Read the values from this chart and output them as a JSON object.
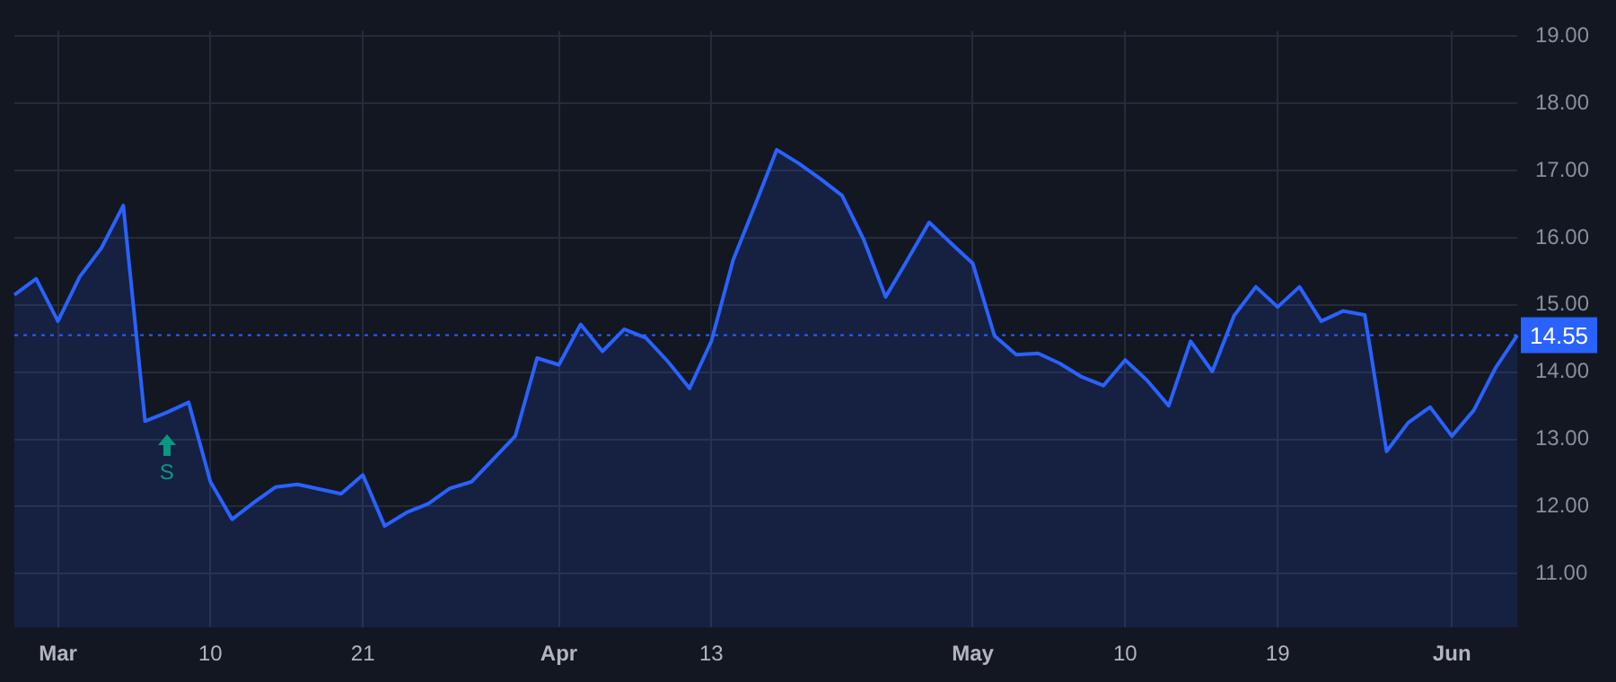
{
  "chart_data": {
    "type": "area",
    "categories": [
      null,
      null,
      "Mar",
      null,
      null,
      null,
      null,
      null,
      null,
      "10",
      null,
      null,
      null,
      null,
      null,
      null,
      "21",
      null,
      null,
      null,
      null,
      null,
      null,
      null,
      null,
      "Apr",
      null,
      null,
      null,
      null,
      null,
      null,
      "13",
      null,
      null,
      null,
      null,
      null,
      null,
      null,
      null,
      null,
      null,
      null,
      "May",
      null,
      null,
      null,
      null,
      null,
      null,
      "10",
      null,
      null,
      null,
      null,
      null,
      null,
      "19",
      null,
      null,
      null,
      null,
      null,
      null,
      null,
      "Jun",
      null,
      null,
      null
    ],
    "series": [
      {
        "color": "#2962ff",
        "values": [
          15.15,
          15.39,
          14.76,
          15.42,
          15.85,
          16.48,
          13.27,
          13.4,
          13.55,
          12.37,
          11.81,
          12.06,
          12.29,
          12.33,
          12.26,
          12.19,
          12.47,
          11.71,
          11.91,
          12.04,
          12.27,
          12.37,
          12.71,
          13.05,
          14.21,
          14.11,
          14.71,
          14.31,
          14.64,
          14.51,
          14.16,
          13.76,
          14.46,
          15.67,
          16.48,
          17.31,
          17.11,
          16.88,
          16.63,
          15.97,
          15.12,
          15.67,
          16.23,
          15.92,
          15.62,
          14.54,
          14.26,
          14.28,
          14.13,
          13.93,
          13.8,
          14.18,
          13.88,
          13.5,
          14.46,
          14.01,
          14.84,
          15.27,
          14.97,
          15.27,
          14.76,
          14.91,
          14.85,
          12.82,
          13.25,
          13.48,
          13.05,
          13.43,
          14.06,
          14.55
        ]
      }
    ],
    "ylim": [
      10.2,
      19.08
    ],
    "yticks": [
      {
        "value": 11,
        "label": "11.00"
      },
      {
        "value": 12,
        "label": "12.00"
      },
      {
        "value": 13,
        "label": "13.00"
      },
      {
        "value": 14,
        "label": "14.00"
      },
      {
        "value": 15,
        "label": "15.00"
      },
      {
        "value": 16,
        "label": "16.00"
      },
      {
        "value": 17,
        "label": "17.00"
      },
      {
        "value": 18,
        "label": "18.00"
      },
      {
        "value": 19,
        "label": "19.00"
      }
    ],
    "ref_lines": [
      {
        "axis": "y",
        "value": 14.55,
        "label": "14.55",
        "color": "#2962ff",
        "line_style": "dotted"
      }
    ],
    "annotations": [
      "S"
    ],
    "grid": true,
    "legend": false,
    "marker": "none",
    "line_style": "solid"
  }
}
